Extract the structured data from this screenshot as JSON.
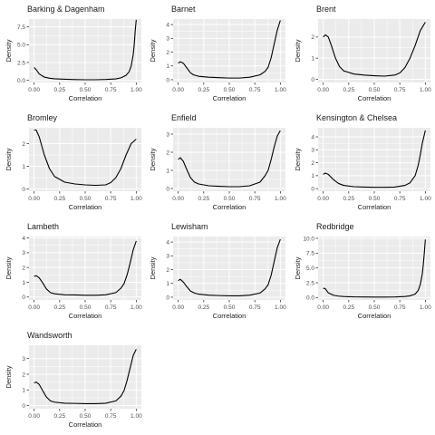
{
  "chart_data": {
    "type": "line",
    "layout": "facet_wrap",
    "grid": true,
    "xlabel": "Correlation",
    "ylabel": "Density",
    "x_ticks": [
      0.0,
      0.25,
      0.5,
      0.75,
      1.0
    ],
    "x_tick_labels": [
      "0.00",
      "0.25",
      "0.50",
      "0.75",
      "1.00"
    ],
    "xlim": [
      -0.05,
      1.05
    ],
    "line_color": "#000000",
    "panel_background": "#ebebeb",
    "grid_color": "#ffffff",
    "panels": [
      {
        "title": "Barking & Dagenham",
        "ylim": [
          -0.3,
          8.6
        ],
        "y_ticks": [
          0.0,
          2.5,
          5.0,
          7.5
        ],
        "y_tick_labels": [
          "0.0",
          "2.5",
          "5.0",
          "7.5"
        ],
        "series": [
          {
            "x": [
              0.0,
              0.02,
              0.05,
              0.1,
              0.15,
              0.2,
              0.3,
              0.4,
              0.5,
              0.6,
              0.7,
              0.8,
              0.85,
              0.9,
              0.93,
              0.95,
              0.97,
              0.98,
              0.99,
              1.0
            ],
            "y": [
              1.8,
              1.5,
              0.9,
              0.45,
              0.3,
              0.22,
              0.15,
              0.1,
              0.08,
              0.08,
              0.12,
              0.2,
              0.35,
              0.7,
              1.2,
              2.0,
              3.6,
              5.0,
              7.0,
              8.5
            ]
          }
        ]
      },
      {
        "title": "Barnet",
        "ylim": [
          -0.2,
          4.4
        ],
        "y_ticks": [
          0,
          1,
          2,
          3,
          4
        ],
        "y_tick_labels": [
          "0",
          "1",
          "2",
          "3",
          "4"
        ],
        "series": [
          {
            "x": [
              0.0,
              0.02,
              0.05,
              0.08,
              0.12,
              0.15,
              0.2,
              0.3,
              0.4,
              0.5,
              0.6,
              0.7,
              0.8,
              0.85,
              0.88,
              0.91,
              0.94,
              0.97,
              1.0
            ],
            "y": [
              1.2,
              1.3,
              1.2,
              0.9,
              0.5,
              0.35,
              0.25,
              0.18,
              0.15,
              0.12,
              0.12,
              0.18,
              0.35,
              0.6,
              0.9,
              1.6,
              2.6,
              3.6,
              4.3
            ]
          }
        ]
      },
      {
        "title": "Brent",
        "ylim": [
          -0.15,
          2.85
        ],
        "y_ticks": [
          0,
          1,
          2
        ],
        "y_tick_labels": [
          "0",
          "1",
          "2"
        ],
        "series": [
          {
            "x": [
              0.0,
              0.02,
              0.05,
              0.08,
              0.12,
              0.16,
              0.2,
              0.3,
              0.4,
              0.5,
              0.6,
              0.7,
              0.75,
              0.8,
              0.85,
              0.9,
              0.95,
              1.0
            ],
            "y": [
              2.0,
              2.1,
              2.0,
              1.6,
              1.0,
              0.6,
              0.4,
              0.25,
              0.2,
              0.17,
              0.15,
              0.2,
              0.3,
              0.55,
              1.0,
              1.6,
              2.3,
              2.7
            ]
          }
        ]
      },
      {
        "title": "Bromley",
        "ylim": [
          -0.1,
          2.7
        ],
        "y_ticks": [
          0,
          1,
          2
        ],
        "y_tick_labels": [
          "0",
          "1",
          "2"
        ],
        "series": [
          {
            "x": [
              0.0,
              0.02,
              0.05,
              0.1,
              0.15,
              0.2,
              0.3,
              0.4,
              0.5,
              0.6,
              0.7,
              0.75,
              0.8,
              0.85,
              0.9,
              0.95,
              1.0
            ],
            "y": [
              2.6,
              2.6,
              2.3,
              1.5,
              0.9,
              0.55,
              0.3,
              0.22,
              0.18,
              0.16,
              0.18,
              0.28,
              0.5,
              0.9,
              1.5,
              2.0,
              2.2
            ]
          }
        ]
      },
      {
        "title": "Enfield",
        "ylim": [
          -0.15,
          3.35
        ],
        "y_ticks": [
          0,
          1,
          2,
          3
        ],
        "y_tick_labels": [
          "0",
          "1",
          "2",
          "3"
        ],
        "series": [
          {
            "x": [
              0.0,
              0.02,
              0.05,
              0.08,
              0.12,
              0.16,
              0.2,
              0.3,
              0.4,
              0.5,
              0.6,
              0.7,
              0.8,
              0.85,
              0.88,
              0.91,
              0.94,
              0.97,
              1.0
            ],
            "y": [
              1.6,
              1.7,
              1.5,
              1.1,
              0.6,
              0.35,
              0.25,
              0.15,
              0.12,
              0.1,
              0.1,
              0.15,
              0.35,
              0.7,
              1.0,
              1.6,
              2.3,
              2.9,
              3.2
            ]
          }
        ]
      },
      {
        "title": "Kensington & Chelsea",
        "ylim": [
          -0.2,
          4.7
        ],
        "y_ticks": [
          0,
          1,
          2,
          3,
          4
        ],
        "y_tick_labels": [
          "0",
          "1",
          "2",
          "3",
          "4"
        ],
        "series": [
          {
            "x": [
              0.0,
              0.02,
              0.05,
              0.1,
              0.15,
              0.2,
              0.3,
              0.4,
              0.5,
              0.6,
              0.7,
              0.8,
              0.85,
              0.9,
              0.93,
              0.95,
              0.97,
              1.0
            ],
            "y": [
              1.1,
              1.2,
              1.1,
              0.7,
              0.4,
              0.25,
              0.15,
              0.12,
              0.1,
              0.1,
              0.12,
              0.25,
              0.45,
              1.0,
              1.8,
              2.6,
              3.5,
              4.5
            ]
          }
        ]
      },
      {
        "title": "Lambeth",
        "ylim": [
          -0.2,
          4.1
        ],
        "y_ticks": [
          0,
          1,
          2,
          3,
          4
        ],
        "y_tick_labels": [
          "0",
          "1",
          "2",
          "3",
          "4"
        ],
        "series": [
          {
            "x": [
              0.0,
              0.02,
              0.05,
              0.08,
              0.12,
              0.16,
              0.2,
              0.3,
              0.4,
              0.5,
              0.6,
              0.7,
              0.8,
              0.85,
              0.88,
              0.91,
              0.94,
              0.97,
              1.0
            ],
            "y": [
              1.4,
              1.45,
              1.3,
              1.0,
              0.55,
              0.3,
              0.22,
              0.15,
              0.14,
              0.12,
              0.12,
              0.15,
              0.3,
              0.6,
              0.9,
              1.5,
              2.3,
              3.2,
              3.8
            ]
          }
        ]
      },
      {
        "title": "Lewisham",
        "ylim": [
          -0.2,
          4.4
        ],
        "y_ticks": [
          0,
          1,
          2,
          3,
          4
        ],
        "y_tick_labels": [
          "0",
          "1",
          "2",
          "3",
          "4"
        ],
        "series": [
          {
            "x": [
              0.0,
              0.02,
              0.05,
              0.08,
              0.12,
              0.16,
              0.2,
              0.3,
              0.4,
              0.5,
              0.6,
              0.7,
              0.8,
              0.85,
              0.88,
              0.91,
              0.94,
              0.97,
              1.0
            ],
            "y": [
              1.2,
              1.3,
              1.1,
              0.8,
              0.45,
              0.3,
              0.22,
              0.15,
              0.12,
              0.1,
              0.1,
              0.15,
              0.3,
              0.6,
              0.9,
              1.6,
              2.6,
              3.6,
              4.2
            ]
          }
        ]
      },
      {
        "title": "Redbridge",
        "ylim": [
          -0.4,
          10.3
        ],
        "y_ticks": [
          0.0,
          2.5,
          5.0,
          7.5,
          10.0
        ],
        "y_tick_labels": [
          "0.0",
          "2.5",
          "5.0",
          "7.5",
          "10.0"
        ],
        "series": [
          {
            "x": [
              0.0,
              0.02,
              0.05,
              0.1,
              0.15,
              0.2,
              0.3,
              0.4,
              0.5,
              0.6,
              0.7,
              0.8,
              0.85,
              0.9,
              0.93,
              0.95,
              0.97,
              0.98,
              0.99,
              1.0
            ],
            "y": [
              1.6,
              1.5,
              0.8,
              0.4,
              0.25,
              0.18,
              0.12,
              0.1,
              0.08,
              0.08,
              0.1,
              0.18,
              0.3,
              0.6,
              1.2,
              2.2,
              4.0,
              5.6,
              7.6,
              9.8
            ]
          }
        ]
      },
      {
        "title": "Wandsworth",
        "ylim": [
          -0.2,
          3.85
        ],
        "y_ticks": [
          0,
          1,
          2,
          3
        ],
        "y_tick_labels": [
          "0",
          "1",
          "2",
          "3"
        ],
        "series": [
          {
            "x": [
              0.0,
              0.02,
              0.05,
              0.08,
              0.12,
              0.16,
              0.2,
              0.3,
              0.4,
              0.5,
              0.6,
              0.7,
              0.8,
              0.85,
              0.88,
              0.91,
              0.94,
              0.97,
              1.0
            ],
            "y": [
              1.45,
              1.5,
              1.35,
              1.0,
              0.55,
              0.3,
              0.22,
              0.15,
              0.14,
              0.12,
              0.12,
              0.15,
              0.3,
              0.6,
              0.95,
              1.6,
              2.4,
              3.2,
              3.6
            ]
          }
        ]
      }
    ]
  }
}
